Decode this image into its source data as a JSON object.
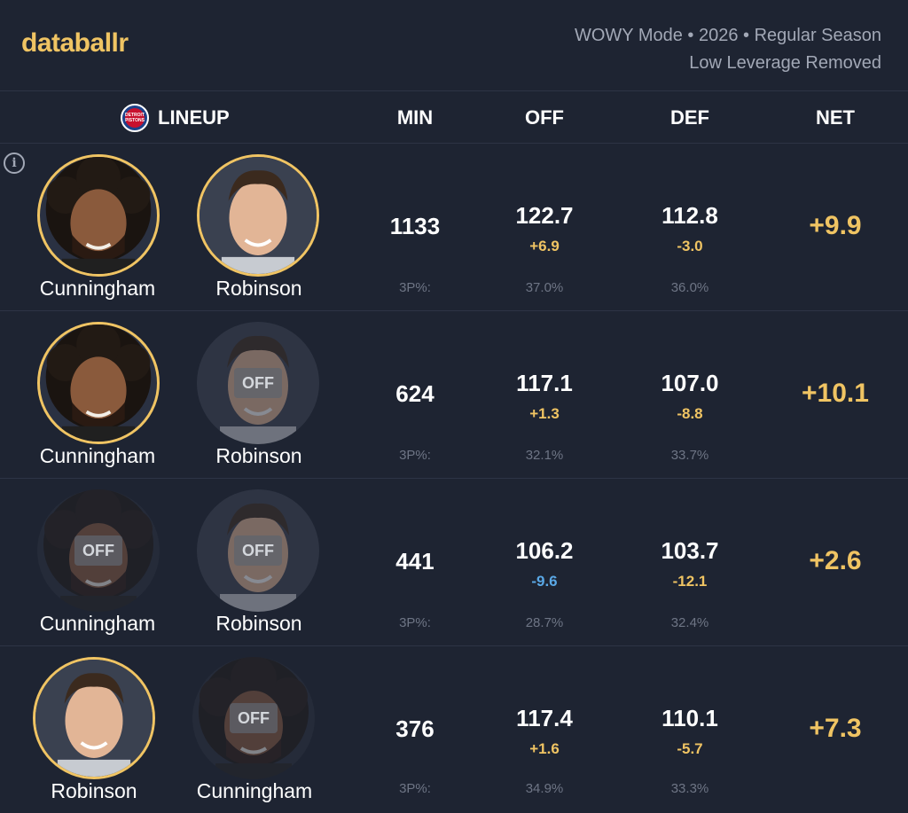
{
  "brand": {
    "logo": "databallr"
  },
  "meta": {
    "line1": "WOWY Mode • 2026 • Regular Season",
    "line2": "Low Leverage Removed"
  },
  "team": {
    "logo_text": "DETROIT PISTONS",
    "accent": "#c8102e"
  },
  "columns": {
    "lineup": "LINEUP",
    "min": "MIN",
    "off": "OFF",
    "def": "DEF",
    "net": "NET"
  },
  "labels": {
    "off_badge": "OFF",
    "sub_label": "3P%:"
  },
  "colors": {
    "accent": "#f0c463",
    "negative_diff": "#5aa8e6",
    "background": "#1e2432"
  },
  "rows": [
    {
      "p1": {
        "name": "Cunningham",
        "status": "on"
      },
      "p2": {
        "name": "Robinson",
        "status": "on"
      },
      "min": "1133",
      "off": {
        "rating": "122.7",
        "diff": "+6.9",
        "three_pct": "37.0%"
      },
      "def": {
        "rating": "112.8",
        "diff": "-3.0",
        "three_pct": "36.0%"
      },
      "net": "+9.9"
    },
    {
      "p1": {
        "name": "Cunningham",
        "status": "on"
      },
      "p2": {
        "name": "Robinson",
        "status": "off"
      },
      "min": "624",
      "off": {
        "rating": "117.1",
        "diff": "+1.3",
        "three_pct": "32.1%"
      },
      "def": {
        "rating": "107.0",
        "diff": "-8.8",
        "three_pct": "33.7%"
      },
      "net": "+10.1"
    },
    {
      "p1": {
        "name": "Cunningham",
        "status": "off"
      },
      "p2": {
        "name": "Robinson",
        "status": "off"
      },
      "min": "441",
      "off": {
        "rating": "106.2",
        "diff": "-9.6",
        "three_pct": "28.7%"
      },
      "def": {
        "rating": "103.7",
        "diff": "-12.1",
        "three_pct": "32.4%"
      },
      "net": "+2.6"
    },
    {
      "p1": {
        "name": "Robinson",
        "status": "on"
      },
      "p2": {
        "name": "Cunningham",
        "status": "off"
      },
      "min": "376",
      "off": {
        "rating": "117.4",
        "diff": "+1.6",
        "three_pct": "34.9%"
      },
      "def": {
        "rating": "110.1",
        "diff": "-5.7",
        "three_pct": "33.3%"
      },
      "net": "+7.3"
    }
  ]
}
